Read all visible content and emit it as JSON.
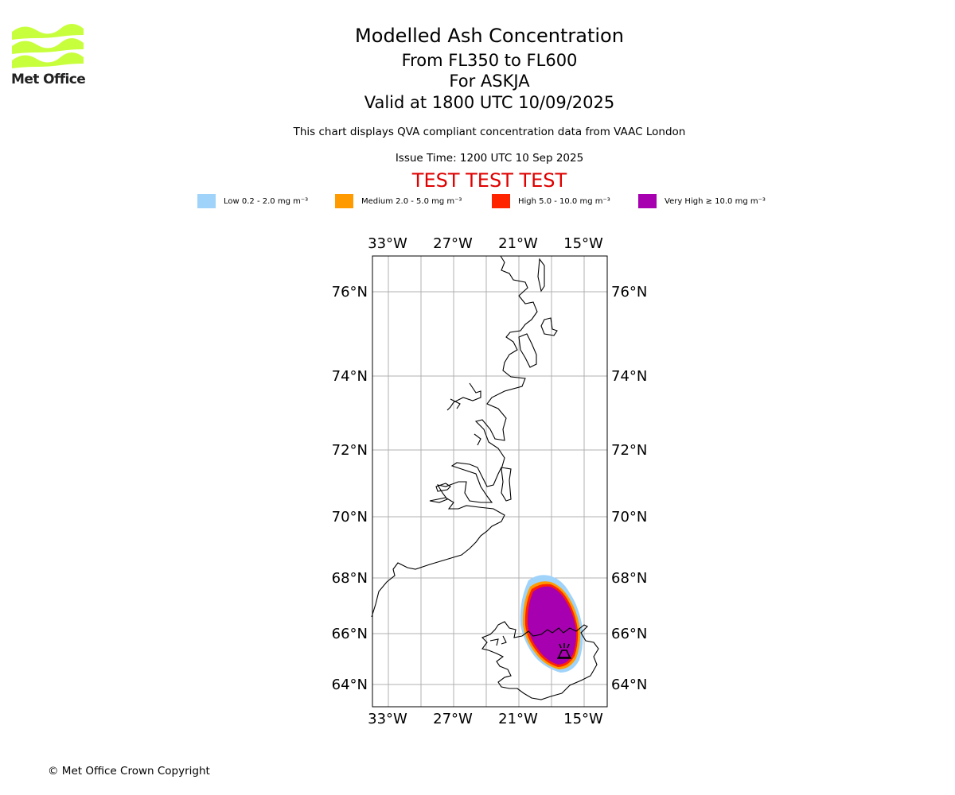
{
  "logo": {
    "text": "Met Office",
    "color": "#c8ff3c"
  },
  "header": {
    "title": "Modelled Ash Concentration",
    "level_range": "From FL350 to FL600",
    "volcano": "For ASKJA",
    "valid": "Valid at 1800 UTC 10/09/2025",
    "note": "This chart displays QVA compliant concentration data from VAAC London",
    "issue": "Issue Time: 1200 UTC 10 Sep 2025",
    "test_banner": "TEST TEST TEST"
  },
  "legend": [
    {
      "label": "Low 0.2 - 2.0 mg m⁻³",
      "color": "#a0d3fa"
    },
    {
      "label": "Medium 2.0 - 5.0 mg m⁻³",
      "color": "#ff9a00"
    },
    {
      "label": "High 5.0 - 10.0 mg m⁻³",
      "color": "#ff2400"
    },
    {
      "label": "Very High ≥ 10.0 mg m⁻³",
      "color": "#a700b0"
    }
  ],
  "map": {
    "lon_ticks": [
      "33°W",
      "27°W",
      "21°W",
      "15°W"
    ],
    "lat_ticks": [
      "76°N",
      "74°N",
      "72°N",
      "70°N",
      "68°N",
      "66°N",
      "64°N"
    ],
    "grid": true,
    "volcano_marker": "volcano-icon"
  },
  "footer": {
    "copyright": "© Met Office Crown Copyright"
  }
}
